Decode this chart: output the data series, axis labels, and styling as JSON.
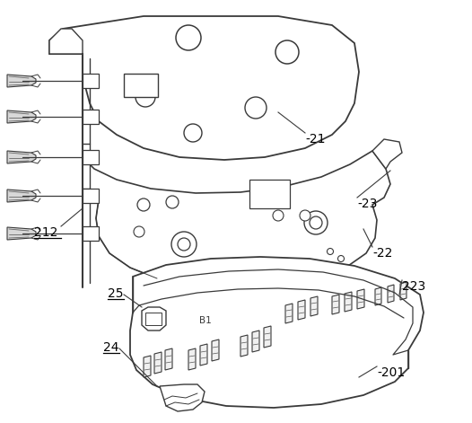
{
  "bg_color": "#ffffff",
  "line_color": "#3a3a3a",
  "label_color": "#000000",
  "fig_width": 5.26,
  "fig_height": 4.71,
  "dpi": 100
}
